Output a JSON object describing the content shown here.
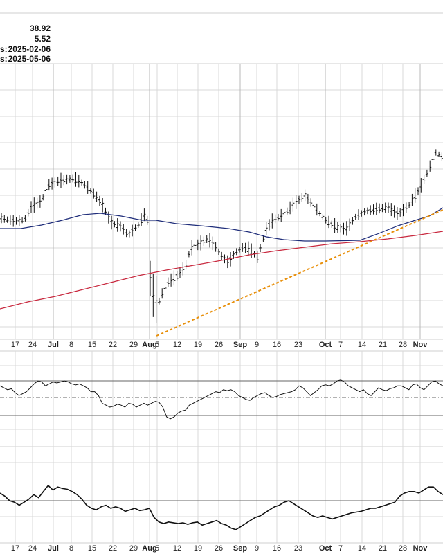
{
  "info": {
    "lines": [
      {
        "label": "",
        "value": "38.92"
      },
      {
        "label": "",
        "value": "5.52"
      },
      {
        "label": "s:",
        "value": "2025-02-06"
      },
      {
        "label": "s:",
        "value": "2025-05-06"
      }
    ]
  },
  "colors": {
    "background": "#ffffff",
    "grid": "#d9d9d9",
    "bars": "#111111",
    "ma_blue": "#1f2d7a",
    "ma_red": "#c8283e",
    "trendline": "#e8900c",
    "indicator_line": "#111111",
    "reference_line": "#666666"
  },
  "chart_data": [
    {
      "type": "ohlc",
      "x_axis": {
        "tick_labels": [
          "17",
          "24",
          "Jul",
          "8",
          "15",
          "22",
          "29",
          "Aug",
          "5",
          "12",
          "19",
          "26",
          "Sep",
          "9",
          "16",
          "23",
          "Oct",
          "7",
          "14",
          "21",
          "28",
          "Nov"
        ],
        "month_labels": [
          "Jul",
          "Aug",
          "Sep",
          "Oct",
          "Nov"
        ]
      },
      "price_series": "dense daily OHLC bars from mid-June through early November",
      "overlays": [
        {
          "type": "moving-average",
          "color": "blue"
        },
        {
          "type": "moving-average",
          "color": "red"
        },
        {
          "type": "trendline",
          "style": "dotted",
          "color": "orange",
          "from": "Aug 5 low",
          "to": "Nov (rising)"
        }
      ],
      "grid": true
    },
    {
      "type": "line",
      "panel": "oscillator-1",
      "reference_lines": [
        "upper",
        "middle (dash-dot)",
        "lower"
      ],
      "values": [
        62,
        60,
        58,
        59,
        55,
        52,
        54,
        56,
        60,
        64,
        67,
        66,
        62,
        64,
        66,
        65,
        66,
        67,
        66,
        64,
        63,
        64,
        62,
        60,
        56,
        56,
        52,
        44,
        42,
        40,
        41,
        43,
        42,
        40,
        44,
        43,
        40,
        42,
        44,
        42,
        44,
        46,
        45,
        40,
        30,
        28,
        30,
        34,
        36,
        37,
        42,
        44,
        46,
        48,
        50,
        52,
        54,
        56,
        55,
        58,
        57,
        58,
        56,
        52,
        50,
        48,
        47,
        50,
        52,
        54,
        55,
        52,
        50,
        51,
        53,
        54,
        55,
        56,
        58,
        62,
        60,
        56,
        52,
        55,
        58,
        62,
        63,
        62,
        64,
        67,
        68,
        66,
        62,
        60,
        58,
        56,
        58,
        54,
        52,
        56,
        60,
        58,
        57,
        59,
        60,
        62,
        62,
        60,
        58,
        63,
        64,
        60,
        58,
        62,
        66,
        67,
        64,
        62
      ]
    },
    {
      "type": "line",
      "panel": "oscillator-2",
      "reference_lines": [
        "upper"
      ],
      "values": [
        60,
        56,
        50,
        48,
        44,
        48,
        52,
        58,
        54,
        62,
        70,
        64,
        68,
        66,
        65,
        62,
        58,
        52,
        44,
        40,
        38,
        42,
        44,
        40,
        42,
        40,
        36,
        38,
        40,
        37,
        38,
        40,
        28,
        22,
        20,
        22,
        21,
        20,
        21,
        19,
        21,
        22,
        18,
        20,
        22,
        24,
        20,
        18,
        14,
        12,
        16,
        20,
        24,
        28,
        30,
        34,
        38,
        42,
        44,
        48,
        50,
        46,
        42,
        38,
        34,
        30,
        28,
        30,
        28,
        26,
        28,
        30,
        32,
        34,
        35,
        36,
        38,
        40,
        40,
        42,
        44,
        46,
        48,
        56,
        60,
        62,
        62,
        60,
        64,
        68,
        68,
        62,
        58
      ]
    }
  ]
}
